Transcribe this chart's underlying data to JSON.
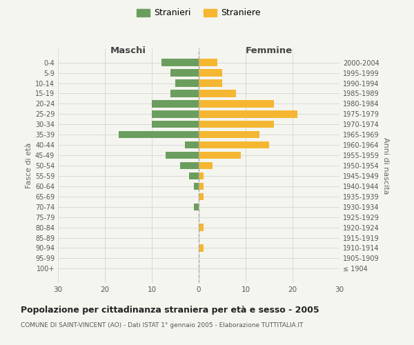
{
  "age_groups": [
    "100+",
    "95-99",
    "90-94",
    "85-89",
    "80-84",
    "75-79",
    "70-74",
    "65-69",
    "60-64",
    "55-59",
    "50-54",
    "45-49",
    "40-44",
    "35-39",
    "30-34",
    "25-29",
    "20-24",
    "15-19",
    "10-14",
    "5-9",
    "0-4"
  ],
  "birth_years": [
    "≤ 1904",
    "1905-1909",
    "1910-1914",
    "1915-1919",
    "1920-1924",
    "1925-1929",
    "1930-1934",
    "1935-1939",
    "1940-1944",
    "1945-1949",
    "1950-1954",
    "1955-1959",
    "1960-1964",
    "1965-1969",
    "1970-1974",
    "1975-1979",
    "1980-1984",
    "1985-1989",
    "1990-1994",
    "1995-1999",
    "2000-2004"
  ],
  "males": [
    0,
    0,
    0,
    0,
    0,
    0,
    1,
    0,
    1,
    2,
    4,
    7,
    3,
    17,
    10,
    10,
    10,
    6,
    5,
    6,
    8
  ],
  "females": [
    0,
    0,
    1,
    0,
    1,
    0,
    0,
    1,
    1,
    1,
    3,
    9,
    15,
    13,
    16,
    21,
    16,
    8,
    5,
    5,
    4
  ],
  "male_color": "#6b9e5e",
  "female_color": "#f5b731",
  "background_color": "#f5f5f0",
  "grid_color": "#cccccc",
  "title": "Popolazione per cittadinanza straniera per età e sesso - 2005",
  "subtitle": "COMUNE DI SAINT-VINCENT (AO) - Dati ISTAT 1° gennaio 2005 - Elaborazione TUTTITALIA.IT",
  "legend_stranieri": "Stranieri",
  "legend_straniere": "Straniere",
  "xlabel_left": "Maschi",
  "xlabel_right": "Femmine",
  "ylabel_left": "Fasce di età",
  "ylabel_right": "Anni di nascita",
  "xlim": 30
}
